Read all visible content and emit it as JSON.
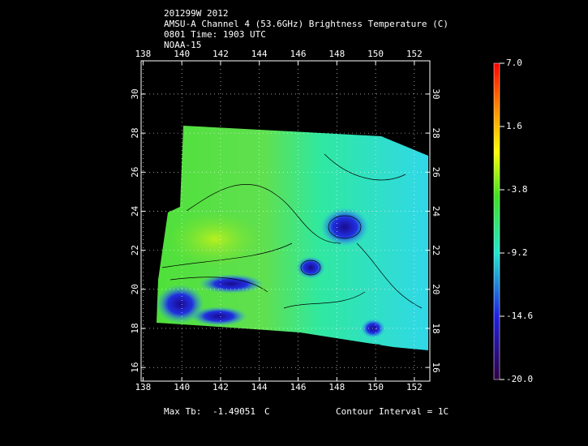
{
  "title_lines": [
    "201299W 2012",
    "AMSU-A Channel 4 (53.6GHz) Brightness Temperature (C)",
    "0801 Time: 1903 UTC",
    "NOAA-15"
  ],
  "map": {
    "lon_range": [
      137.9,
      152.8
    ],
    "lat_range": [
      15.3,
      31.7
    ],
    "lon_ticks": [
      138,
      140,
      142,
      144,
      146,
      148,
      150,
      152
    ],
    "lat_ticks": [
      16,
      18,
      20,
      22,
      24,
      26,
      28,
      30
    ],
    "grid": true
  },
  "colorbar": {
    "range": [
      -20,
      7
    ],
    "ticks": [
      {
        "value": 7,
        "label": "7.0"
      },
      1.6,
      -3.8,
      -9.2,
      -14.6,
      {
        "value": -20,
        "label": "-20.0"
      }
    ]
  },
  "footer": {
    "max_label": "Max Tb:",
    "max_value": -1.49051,
    "max_unit": "C",
    "contour": "Contour Interval = 1C"
  }
}
